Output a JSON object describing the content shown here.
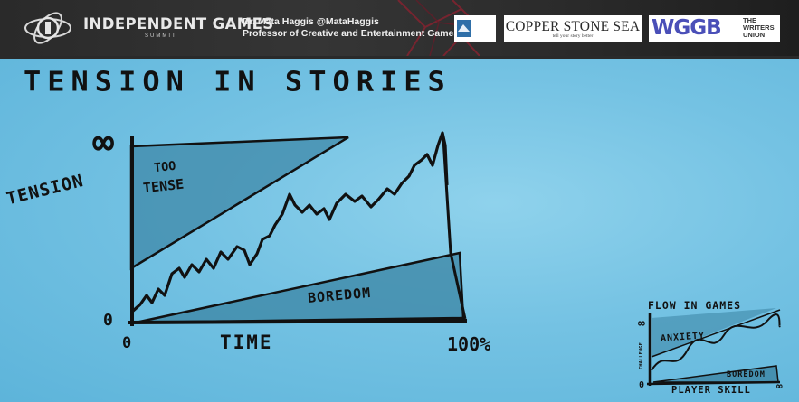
{
  "header": {
    "summit_title": "INDEPENDENT GAMES",
    "summit_subtitle": "SUMMIT",
    "speaker_line": "Dr. Mata Haggis @MataHaggis",
    "speaker_role": "Professor of Creative and Entertainment Games",
    "sponsors": {
      "copper_stone_sea": "COPPER STONE SEA",
      "copper_stone_sea_tagline": "tell your story better",
      "wggb": "WGGB",
      "wggb_union": "THE WRITERS' UNION"
    },
    "colors": {
      "bar": "#2e2e2e",
      "wggb_blue": "#4a4fb8"
    }
  },
  "board": {
    "title": "TENSION IN STORIES",
    "y_axis_label": "TENSION",
    "x_axis_label": "TIME",
    "y_max_label": "∞",
    "y_min_label": "0",
    "x_min_label": "0",
    "x_max_label": "100%",
    "upper_region_line1": "TOO",
    "upper_region_line2": "TENSE",
    "lower_region": "BOREDOM",
    "background": "#74c2e3"
  },
  "inset": {
    "title": "FLOW IN GAMES",
    "y_axis_label": "CHALLENGE",
    "x_axis_label": "PLAYER SKILL",
    "upper_region": "ANXIETY",
    "lower_region": "BOREDOM",
    "y_max_label": "∞",
    "y_min_label": "0",
    "x_max_label": "∞"
  }
}
